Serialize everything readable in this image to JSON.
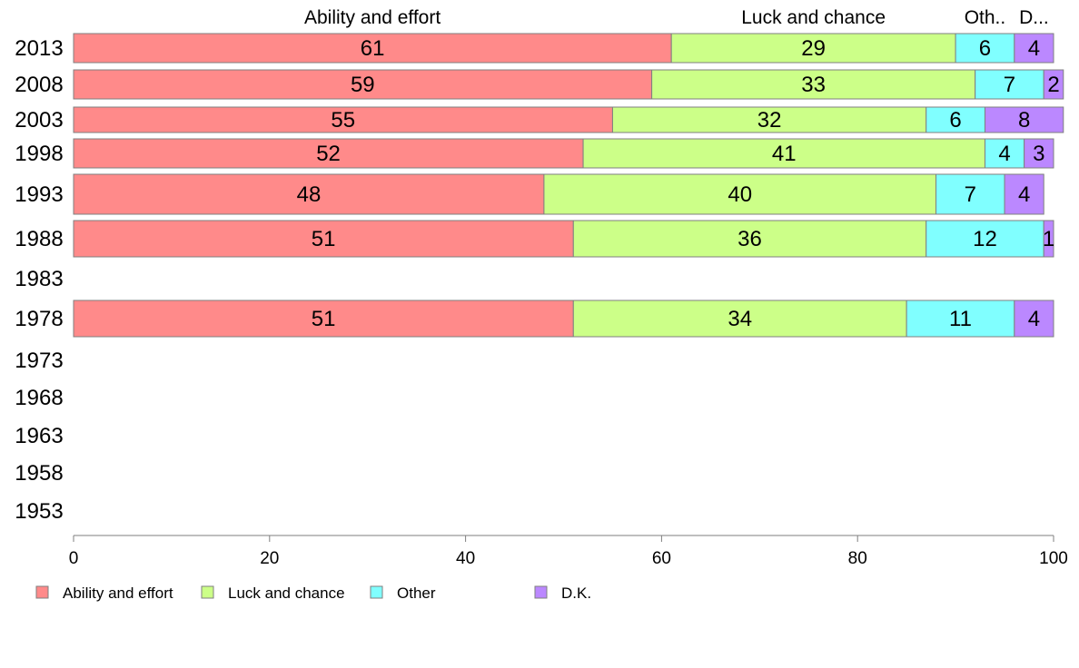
{
  "chart_data": {
    "type": "bar",
    "orientation": "horizontal",
    "stacked": true,
    "categories": [
      "2013",
      "2008",
      "2003",
      "1998",
      "1993",
      "1988",
      "1983",
      "1978",
      "1973",
      "1968",
      "1963",
      "1958",
      "1953"
    ],
    "series": [
      {
        "name": "Ability and effort",
        "color": "#ff8a8a",
        "values": [
          61,
          59,
          55,
          52,
          48,
          51,
          null,
          51,
          null,
          null,
          null,
          null,
          null
        ]
      },
      {
        "name": "Luck and chance",
        "color": "#ccff88",
        "values": [
          29,
          33,
          32,
          41,
          40,
          36,
          null,
          34,
          null,
          null,
          null,
          null,
          null
        ]
      },
      {
        "name": "Other",
        "color": "#80ffff",
        "values": [
          6,
          7,
          6,
          4,
          7,
          12,
          null,
          11,
          null,
          null,
          null,
          null,
          null
        ]
      },
      {
        "name": "D.K.",
        "color": "#bb88ff",
        "values": [
          4,
          2,
          8,
          3,
          4,
          1,
          null,
          4,
          null,
          null,
          null,
          null,
          null
        ]
      }
    ],
    "top_labels": [
      "Ability and effort",
      "Luck and chance",
      "Oth..",
      "D..."
    ],
    "xlim": [
      0,
      100
    ],
    "xticks": [
      0,
      20,
      40,
      60,
      80,
      100
    ],
    "grid": false,
    "legend_position": "bottom"
  }
}
